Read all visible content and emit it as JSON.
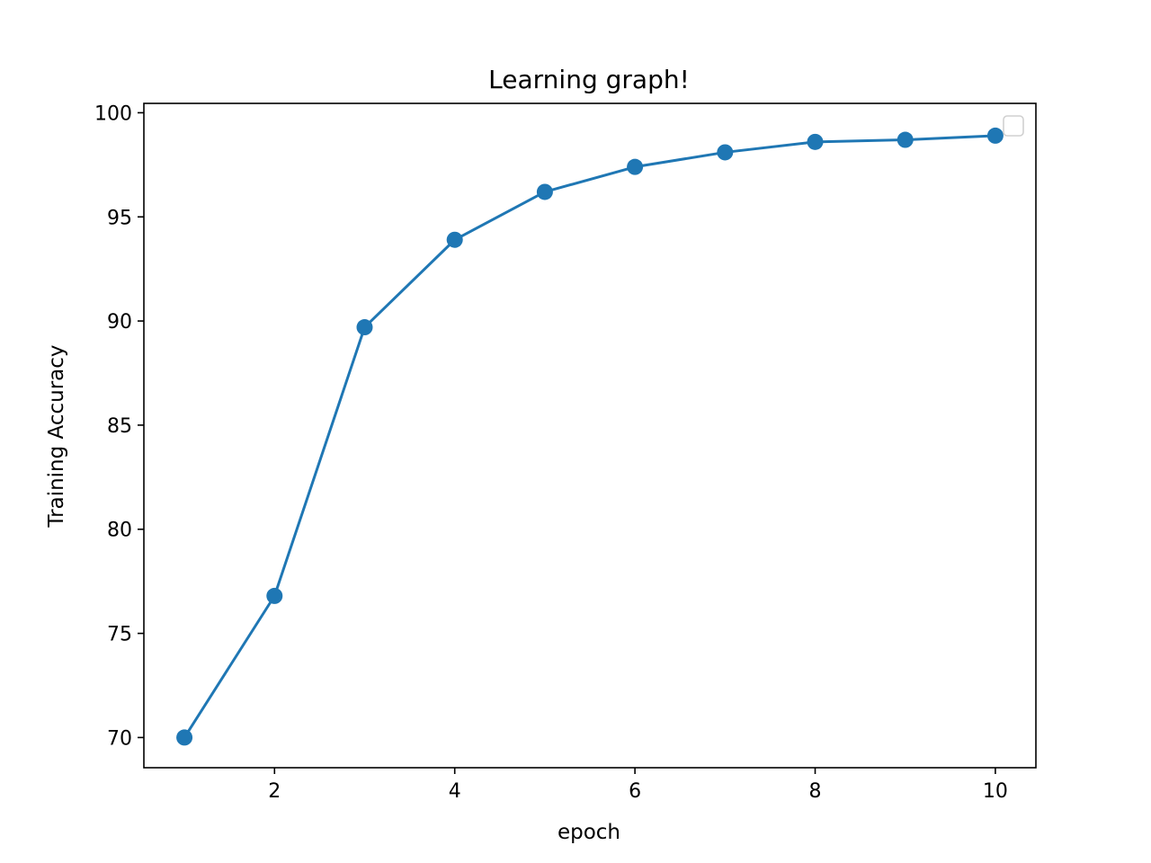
{
  "chart_data": {
    "type": "line",
    "title": "Learning graph!",
    "xlabel": "epoch",
    "ylabel": "Training Accuracy",
    "xlim": [
      0.55,
      10.45
    ],
    "ylim": [
      68.55,
      100.45
    ],
    "x_ticks": [
      2,
      4,
      6,
      8,
      10
    ],
    "y_ticks": [
      70,
      75,
      80,
      85,
      90,
      95,
      100
    ],
    "grid": false,
    "legend": "top-right",
    "series": [
      {
        "x": [
          1,
          2,
          3,
          4,
          5,
          6,
          7,
          8,
          9,
          10
        ],
        "values": [
          70.0,
          76.8,
          89.7,
          93.9,
          96.2,
          97.4,
          98.1,
          98.6,
          98.7,
          98.9
        ],
        "color": "#1f77b4",
        "marker": "circle"
      }
    ]
  }
}
